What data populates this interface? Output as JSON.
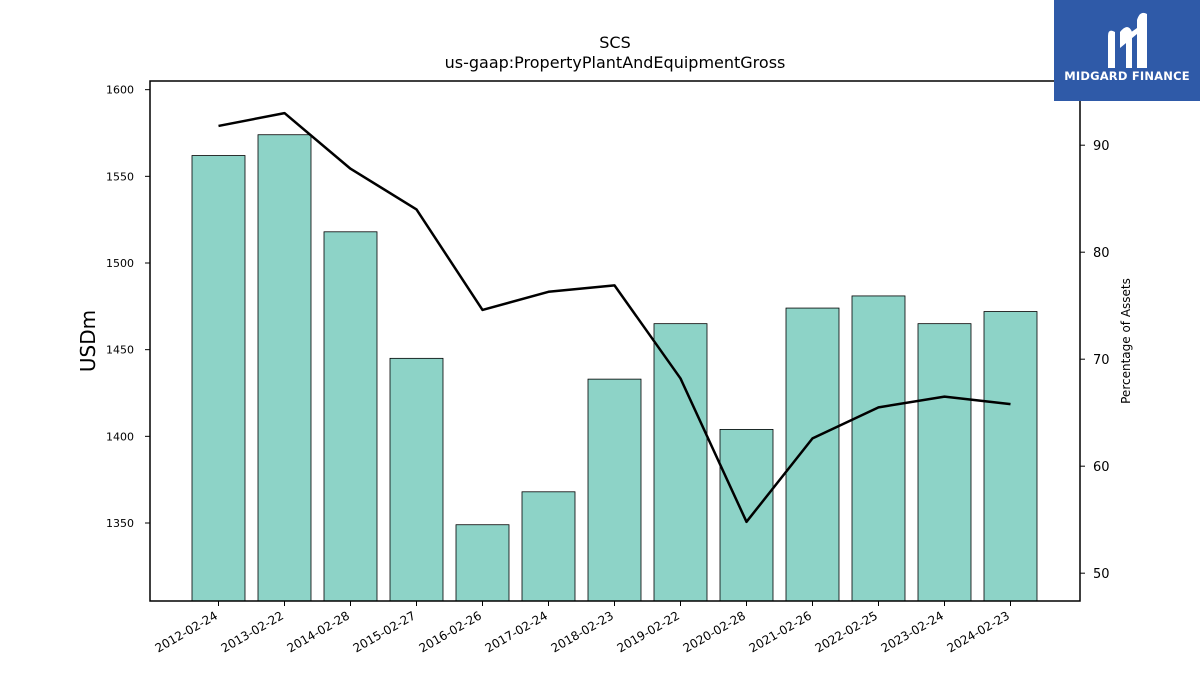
{
  "chart_data": {
    "type": "bar",
    "title": "SCS",
    "subtitle": "us-gaap:PropertyPlantAndEquipmentGross",
    "ylabel": "USDm",
    "y2label": "Percentage of Assets",
    "categories": [
      "2012-02-24",
      "2013-02-22",
      "2014-02-28",
      "2015-02-27",
      "2016-02-26",
      "2017-02-24",
      "2018-02-23",
      "2019-02-22",
      "2020-02-28",
      "2021-02-26",
      "2022-02-25",
      "2023-02-24",
      "2024-02-23"
    ],
    "series": [
      {
        "type": "bar",
        "axis": "left",
        "values": [
          1562,
          1574,
          1518,
          1445,
          1349,
          1368,
          1433,
          1465,
          1404,
          1474,
          1481,
          1465,
          1472
        ],
        "color": "#8dd3c7"
      },
      {
        "type": "line",
        "axis": "right",
        "values": [
          91.8,
          93.0,
          87.8,
          84.0,
          74.6,
          76.3,
          76.9,
          68.2,
          54.8,
          62.6,
          65.5,
          66.5,
          65.8
        ],
        "color": "#000000"
      }
    ],
    "ylim": [
      1305,
      1605
    ],
    "y2lim": [
      47.4,
      96.0
    ],
    "yticks": [
      1350,
      1400,
      1450,
      1500,
      1550,
      1600
    ],
    "y2ticks": [
      50,
      60,
      70,
      80,
      90
    ],
    "grid": false
  },
  "logo": {
    "text": "MIDGARD FINANCE"
  }
}
